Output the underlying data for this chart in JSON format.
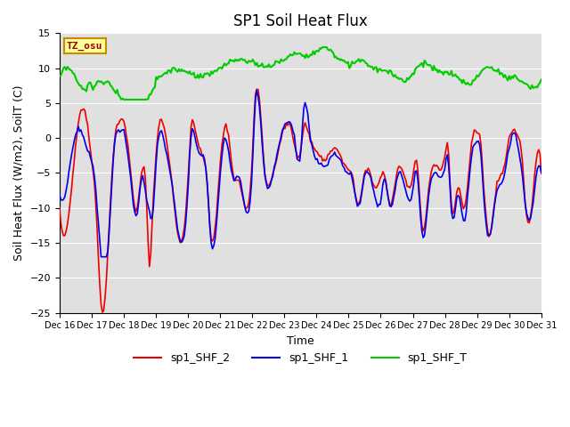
{
  "title": "SP1 Soil Heat Flux",
  "xlabel": "Time",
  "ylabel": "Soil Heat Flux (W/m2), SoilT (C)",
  "ylim": [
    -25,
    15
  ],
  "xtick_labels": [
    "Dec 16",
    "Dec 17",
    "Dec 18",
    "Dec 19",
    "Dec 20",
    "Dec 21",
    "Dec 22",
    "Dec 23",
    "Dec 24",
    "Dec 25",
    "Dec 26",
    "Dec 27",
    "Dec 28",
    "Dec 29",
    "Dec 30",
    "Dec 31"
  ],
  "bg_color": "#e0e0e0",
  "line_colors": {
    "sp1_SHF_2": "#ee0000",
    "sp1_SHF_1": "#0000ee",
    "sp1_SHF_T": "#00cc00"
  },
  "line_widths": {
    "sp1_SHF_2": 1.2,
    "sp1_SHF_1": 1.2,
    "sp1_SHF_T": 1.5
  },
  "tz_label": "TZ_osu",
  "grid_color": "#ffffff",
  "title_fontsize": 12,
  "axis_fontsize": 9,
  "tick_fontsize": 7
}
